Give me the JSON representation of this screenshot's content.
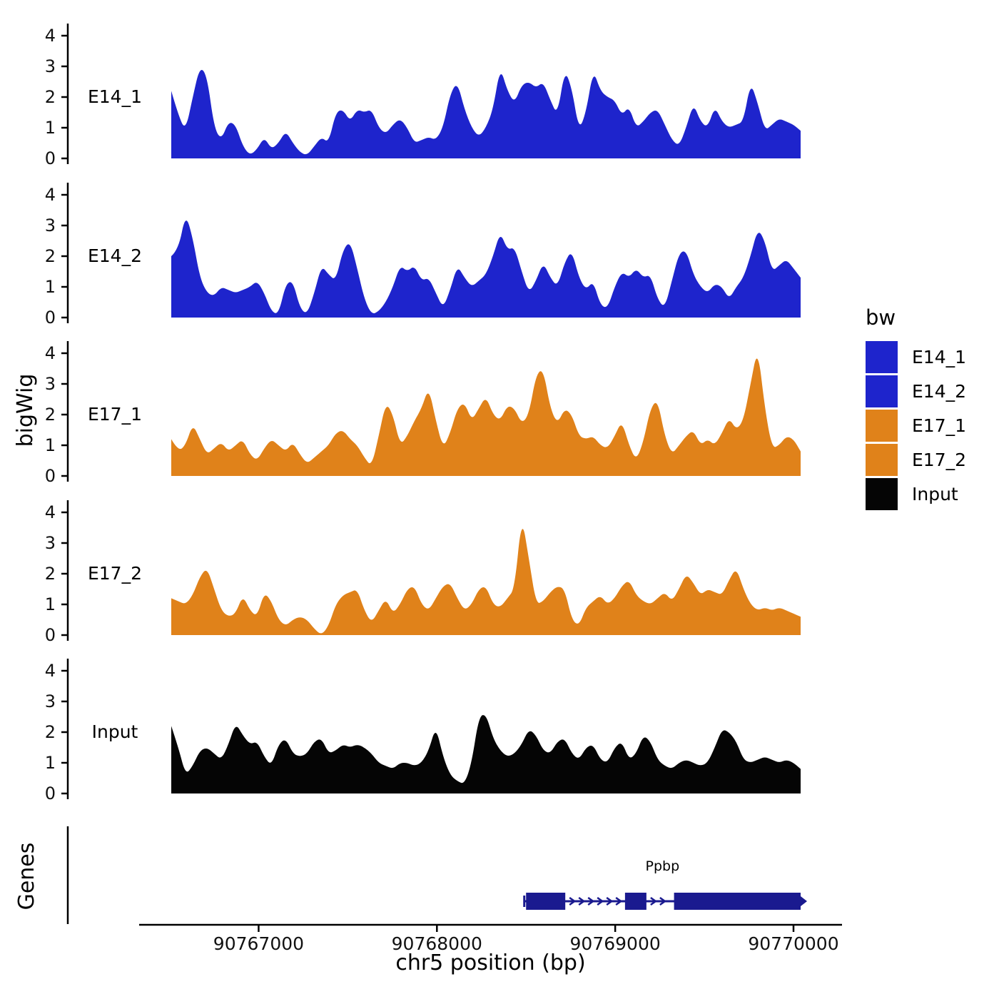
{
  "chart_data": {
    "type": "area",
    "title": "",
    "xlabel": "chr5 position (bp)",
    "ylabel": "bigWig",
    "x_range": [
      90766510,
      90770040
    ],
    "y_range": [
      0,
      4.4
    ],
    "y_ticks": [
      0,
      1,
      2,
      3,
      4
    ],
    "x_ticks": [
      90767000,
      90768000,
      90769000,
      90770000
    ],
    "grid": "off",
    "legend": {
      "title": "bw",
      "position": "right",
      "entries": [
        {
          "label": "E14_1",
          "color": "#1E24CC"
        },
        {
          "label": "E14_2",
          "color": "#1E24CC"
        },
        {
          "label": "E17_1",
          "color": "#E0821A"
        },
        {
          "label": "E17_2",
          "color": "#E0821A"
        },
        {
          "label": "Input",
          "color": "#050505"
        }
      ]
    },
    "tracks": [
      {
        "label": "E14_1",
        "color": "#1E24CC",
        "values": [
          2.2,
          1.4,
          0.9,
          2.0,
          3.0,
          2.7,
          1.0,
          0.6,
          1.2,
          1.1,
          0.4,
          0.1,
          0.3,
          0.7,
          0.3,
          0.5,
          0.9,
          0.5,
          0.2,
          0.1,
          0.4,
          0.7,
          0.5,
          1.5,
          1.6,
          1.2,
          1.6,
          1.5,
          1.6,
          1.0,
          0.8,
          1.1,
          1.3,
          1.0,
          0.5,
          0.6,
          0.7,
          0.6,
          1.0,
          2.1,
          2.5,
          1.6,
          1.0,
          0.7,
          1.0,
          1.6,
          3.0,
          2.2,
          1.8,
          2.4,
          2.5,
          2.3,
          2.5,
          1.9,
          1.4,
          2.9,
          2.3,
          0.9,
          1.5,
          2.9,
          2.2,
          2.0,
          1.9,
          1.4,
          1.7,
          1.0,
          1.2,
          1.5,
          1.6,
          1.1,
          0.6,
          0.4,
          1.0,
          1.8,
          1.2,
          1.0,
          1.7,
          1.2,
          1.0,
          1.1,
          1.2,
          2.5,
          1.8,
          0.9,
          1.1,
          1.3,
          1.2,
          1.1,
          0.9
        ]
      },
      {
        "label": "E14_2",
        "color": "#1E24CC",
        "values": [
          2.0,
          2.2,
          3.4,
          2.6,
          1.3,
          0.8,
          0.7,
          1.0,
          0.9,
          0.8,
          0.9,
          1.0,
          1.2,
          0.8,
          0.2,
          0.1,
          1.1,
          1.2,
          0.3,
          0.1,
          0.8,
          1.7,
          1.4,
          1.2,
          2.2,
          2.5,
          1.6,
          0.6,
          0.1,
          0.2,
          0.5,
          1.0,
          1.7,
          1.5,
          1.7,
          1.2,
          1.3,
          0.8,
          0.3,
          0.9,
          1.7,
          1.3,
          1.0,
          1.2,
          1.4,
          2.0,
          2.8,
          2.2,
          2.3,
          1.5,
          0.8,
          1.2,
          1.8,
          1.3,
          1.0,
          1.8,
          2.2,
          1.3,
          0.9,
          1.2,
          0.4,
          0.3,
          1.0,
          1.5,
          1.3,
          1.6,
          1.3,
          1.4,
          0.6,
          0.3,
          1.2,
          2.1,
          2.2,
          1.4,
          1.0,
          0.8,
          1.1,
          1.0,
          0.6,
          1.0,
          1.3,
          2.0,
          2.9,
          2.5,
          1.5,
          1.7,
          1.9,
          1.6,
          1.3
        ]
      },
      {
        "label": "E17_1",
        "color": "#E0821A",
        "values": [
          1.2,
          0.8,
          1.0,
          1.7,
          1.2,
          0.7,
          0.9,
          1.1,
          0.8,
          1.0,
          1.2,
          0.7,
          0.5,
          0.9,
          1.2,
          1.0,
          0.8,
          1.1,
          0.7,
          0.4,
          0.6,
          0.8,
          1.0,
          1.4,
          1.5,
          1.2,
          1.0,
          0.6,
          0.3,
          1.3,
          2.4,
          2.0,
          1.0,
          1.3,
          1.8,
          2.2,
          2.9,
          1.8,
          0.9,
          1.4,
          2.2,
          2.4,
          1.8,
          2.2,
          2.6,
          2.0,
          1.8,
          2.3,
          2.2,
          1.7,
          2.0,
          3.3,
          3.5,
          2.2,
          1.7,
          2.2,
          2.0,
          1.3,
          1.2,
          1.3,
          1.0,
          0.9,
          1.3,
          1.8,
          1.0,
          0.5,
          1.1,
          2.2,
          2.5,
          1.3,
          0.7,
          1.0,
          1.3,
          1.5,
          1.0,
          1.2,
          1.0,
          1.4,
          1.9,
          1.5,
          1.8,
          3.0,
          4.2,
          2.2,
          0.9,
          1.0,
          1.3,
          1.2,
          0.8
        ]
      },
      {
        "label": "E17_2",
        "color": "#E0821A",
        "values": [
          1.2,
          1.1,
          1.0,
          1.3,
          1.9,
          2.2,
          1.5,
          0.8,
          0.6,
          0.7,
          1.3,
          0.8,
          0.6,
          1.4,
          1.1,
          0.5,
          0.3,
          0.5,
          0.6,
          0.5,
          0.2,
          0.0,
          0.3,
          1.0,
          1.3,
          1.4,
          1.5,
          0.8,
          0.4,
          0.8,
          1.2,
          0.7,
          1.0,
          1.5,
          1.6,
          1.0,
          0.8,
          1.2,
          1.6,
          1.7,
          1.2,
          0.8,
          1.0,
          1.5,
          1.6,
          1.0,
          0.9,
          1.2,
          1.5,
          3.9,
          2.5,
          1.0,
          1.1,
          1.4,
          1.6,
          1.5,
          0.5,
          0.3,
          0.9,
          1.1,
          1.3,
          1.0,
          1.2,
          1.6,
          1.8,
          1.3,
          1.1,
          1.0,
          1.2,
          1.4,
          1.1,
          1.5,
          2.0,
          1.7,
          1.3,
          1.5,
          1.4,
          1.3,
          1.8,
          2.2,
          1.5,
          1.0,
          0.8,
          0.9,
          0.8,
          0.9,
          0.8,
          0.7,
          0.6
        ]
      },
      {
        "label": "Input",
        "color": "#050505",
        "values": [
          2.2,
          1.5,
          0.6,
          0.9,
          1.4,
          1.5,
          1.3,
          1.1,
          1.6,
          2.3,
          1.9,
          1.6,
          1.7,
          1.2,
          0.9,
          1.6,
          1.8,
          1.3,
          1.2,
          1.3,
          1.7,
          1.8,
          1.3,
          1.4,
          1.6,
          1.5,
          1.6,
          1.5,
          1.3,
          1.0,
          0.9,
          0.8,
          1.0,
          1.0,
          0.9,
          1.0,
          1.4,
          2.2,
          1.2,
          0.6,
          0.4,
          0.3,
          1.0,
          2.5,
          2.6,
          1.8,
          1.4,
          1.2,
          1.3,
          1.6,
          2.1,
          1.9,
          1.4,
          1.3,
          1.7,
          1.8,
          1.3,
          1.1,
          1.5,
          1.6,
          1.1,
          1.0,
          1.5,
          1.7,
          1.1,
          1.3,
          1.9,
          1.7,
          1.1,
          0.9,
          0.8,
          1.0,
          1.1,
          1.0,
          0.9,
          1.0,
          1.5,
          2.1,
          2.0,
          1.7,
          1.1,
          1.0,
          1.1,
          1.2,
          1.1,
          1.0,
          1.1,
          1.0,
          0.8
        ]
      }
    ],
    "genes": {
      "axis_label": "Genes",
      "gene_color": "#1A1A8F",
      "items": [
        {
          "name": "Ppbp",
          "strand": "+",
          "start": 90768490,
          "end": 90770040,
          "exons": [
            [
              90768500,
              90768720
            ],
            [
              90769055,
              90769175
            ],
            [
              90769330,
              90770040
            ]
          ]
        }
      ]
    }
  }
}
